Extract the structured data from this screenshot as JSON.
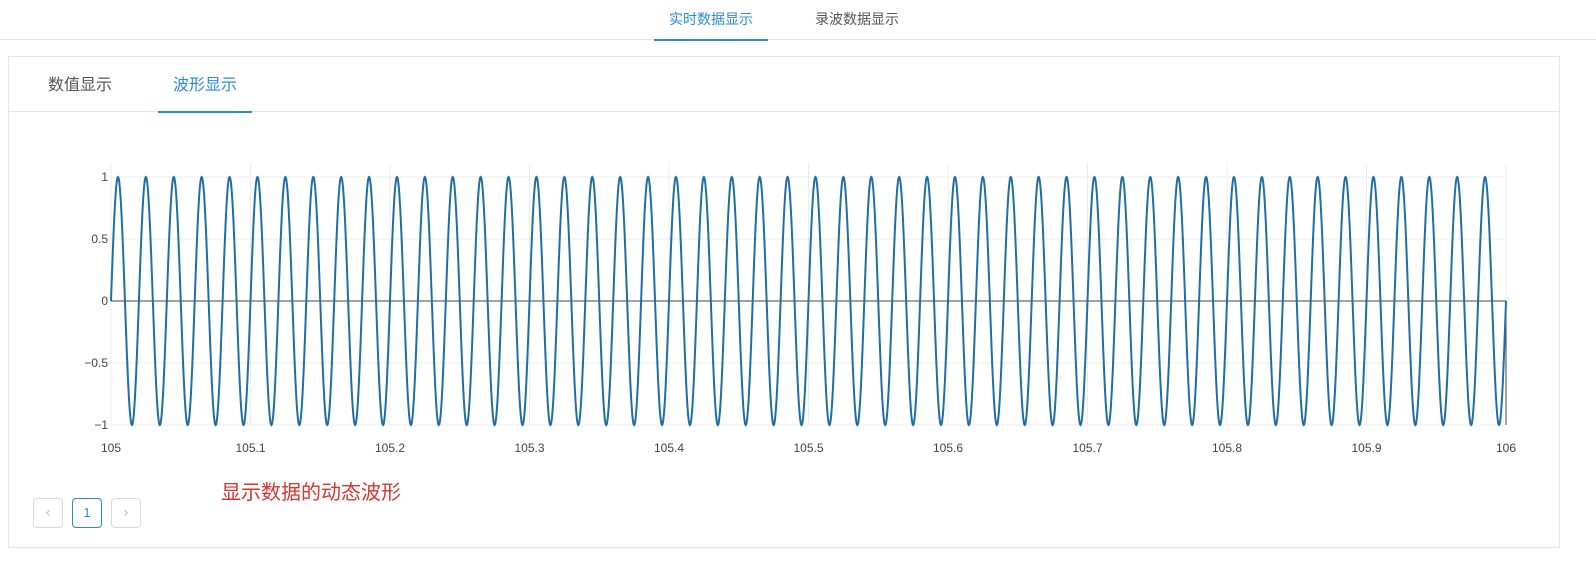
{
  "top_tabs": [
    {
      "label": "实时数据显示",
      "active": true
    },
    {
      "label": "录波数据显示",
      "active": false
    }
  ],
  "sub_tabs": [
    {
      "label": "数值显示",
      "active": false
    },
    {
      "label": "波形显示",
      "active": true
    }
  ],
  "annotation": "显示数据的动态波形",
  "pagination": {
    "prev_icon": "chevron-left-icon",
    "current_page": "1",
    "next_icon": "chevron-right-icon"
  },
  "chart_data": {
    "type": "line",
    "title": "",
    "xlabel": "",
    "ylabel": "",
    "xlim": [
      105,
      106
    ],
    "ylim": [
      -1,
      1
    ],
    "x_ticks": [
      "105",
      "105.1",
      "105.2",
      "105.3",
      "105.4",
      "105.5",
      "105.6",
      "105.7",
      "105.8",
      "105.9",
      "106"
    ],
    "y_ticks": [
      "1",
      "0.5",
      "0",
      "−0.5",
      "−1"
    ],
    "grid": true,
    "series": [
      {
        "function": "sin",
        "amplitude": 1,
        "frequency_hz": 50,
        "phase": 0,
        "x_range": [
          105,
          106
        ],
        "color": "#1f6fa5"
      }
    ]
  }
}
